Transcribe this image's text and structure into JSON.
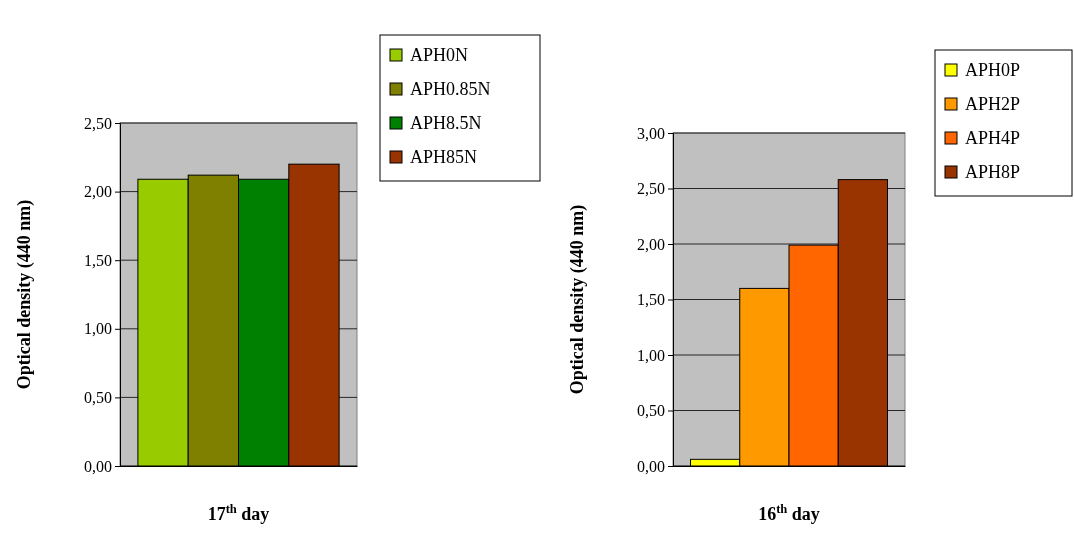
{
  "chart_data": [
    {
      "type": "bar",
      "categories": [
        null
      ],
      "xlabel": "17$^{th}$ day",
      "ylabel": "Optical density (440 nm)",
      "ylim": [
        0,
        2.5
      ],
      "yticks": [
        {
          "value": 0,
          "label": "0,00"
        },
        {
          "value": 0.5,
          "label": "0,50"
        },
        {
          "value": 1,
          "label": "1,00"
        },
        {
          "value": 1.5,
          "label": "1,50"
        },
        {
          "value": 2,
          "label": "2,00"
        },
        {
          "value": 2.5,
          "label": "2,50"
        }
      ],
      "grid": "y",
      "legend": "top right",
      "series": [
        {
          "name": "APH0N",
          "color": "#99cc00",
          "values": [
            2.09
          ]
        },
        {
          "name": "APH0.85N",
          "color": "#808000",
          "values": [
            2.12
          ]
        },
        {
          "name": "APH8.5N",
          "color": "#008000",
          "values": [
            2.09
          ]
        },
        {
          "name": "APH85N",
          "color": "#993300",
          "values": [
            2.2
          ]
        }
      ]
    },
    {
      "type": "bar",
      "categories": [
        null
      ],
      "xlabel": "16$^{th}$ day",
      "ylabel": "Optical density (440 nm)",
      "ylim": [
        0,
        3
      ],
      "yticks": [
        {
          "value": 0,
          "label": "0,00"
        },
        {
          "value": 0.5,
          "label": "0,50"
        },
        {
          "value": 1,
          "label": "1,00"
        },
        {
          "value": 1.5,
          "label": "1,50"
        },
        {
          "value": 2,
          "label": "2,00"
        },
        {
          "value": 2.5,
          "label": "2,50"
        },
        {
          "value": 3,
          "label": "3,00"
        }
      ],
      "grid": "y",
      "legend": "top right",
      "series": [
        {
          "name": "APH0P",
          "color": "#ffff00",
          "values": [
            0.06
          ]
        },
        {
          "name": "APH2P",
          "color": "#ff9900",
          "values": [
            1.6
          ]
        },
        {
          "name": "APH4P",
          "color": "#ff6600",
          "values": [
            1.99
          ]
        },
        {
          "name": "APH8P",
          "color": "#993300",
          "values": [
            2.58
          ]
        }
      ]
    }
  ]
}
